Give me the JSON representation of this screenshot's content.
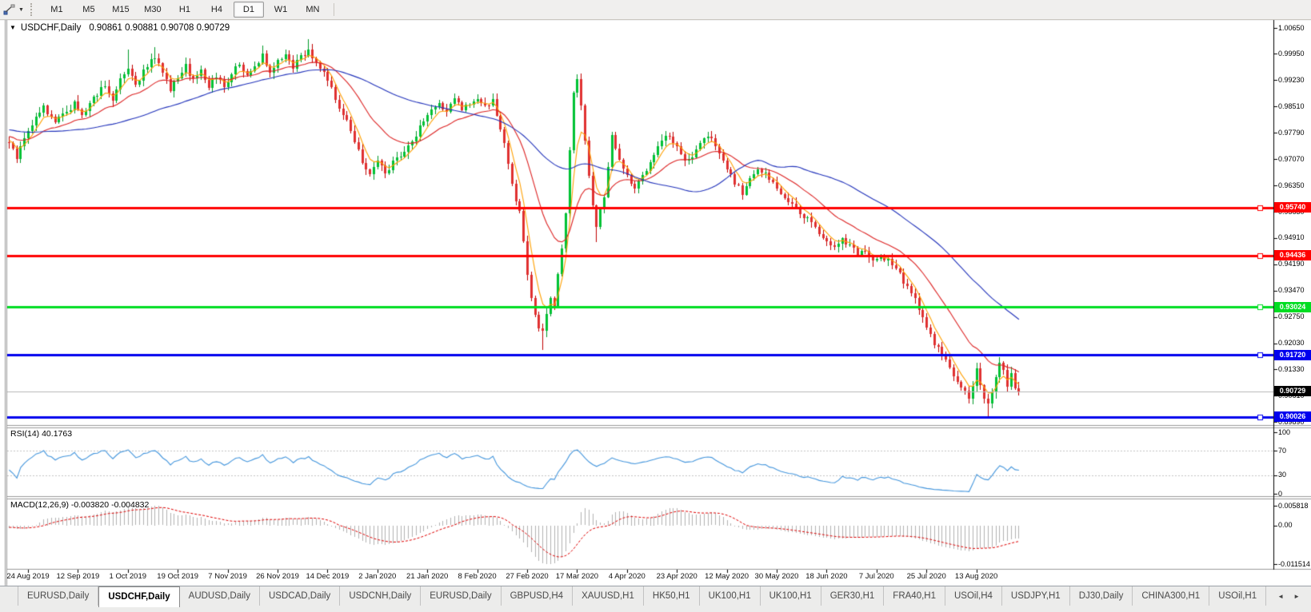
{
  "toolbar": {
    "timeframes": [
      "M1",
      "M5",
      "M15",
      "M30",
      "H1",
      "H4",
      "D1",
      "W1",
      "MN"
    ],
    "active_timeframe": "D1"
  },
  "icons": {
    "chart_dropdown": "▼",
    "toolbar_dropdown": "▼",
    "scroll_left": "◄",
    "scroll_right": "►"
  },
  "chart": {
    "symbol_label": "USDCHF,Daily",
    "ohlc": {
      "open": "0.90861",
      "high": "0.90881",
      "low": "0.90708",
      "close": "0.90729"
    },
    "ohlc_text": "0.90861 0.90881 0.90708 0.90729",
    "price_axis_ticks": [
      "1.00650",
      "0.99950",
      "0.99230",
      "0.98510",
      "0.97790",
      "0.97070",
      "0.96350",
      "0.95630",
      "0.94910",
      "0.94190",
      "0.93470",
      "0.92750",
      "0.92030",
      "0.91330",
      "0.90610",
      "0.89890"
    ],
    "horizontal_lines": [
      {
        "price": 0.9574,
        "label": "0.95740",
        "color": "#ff0000"
      },
      {
        "price": 0.94436,
        "label": "0.94436",
        "color": "#ff0000"
      },
      {
        "price": 0.93024,
        "label": "0.93024",
        "color": "#00dd22"
      },
      {
        "price": 0.9172,
        "label": "0.91720",
        "color": "#0000ee"
      },
      {
        "price": 0.90026,
        "label": "0.90026",
        "color": "#0000ee"
      }
    ],
    "current_price": {
      "value": 0.90729,
      "label": "0.90729",
      "line_color": "#b8b8b8",
      "label_bg": "#000000"
    }
  },
  "indicators": {
    "rsi": {
      "label": "RSI(14) 40.1763",
      "period": 14,
      "value": 40.1763,
      "axis_values": [
        100,
        70,
        30,
        0
      ],
      "axis_labels": [
        "100",
        "70",
        "30",
        "0"
      ],
      "dashed_levels": [
        70,
        30
      ],
      "line_color": "#4496dd"
    },
    "macd": {
      "label": "MACD(12,26,9) -0.003820 -0.004832",
      "fast": 12,
      "slow": 26,
      "signal_period": 9,
      "main_value": -0.00382,
      "signal_value": -0.004832,
      "axis_values": [
        0.005818,
        0.0,
        -0.011514
      ],
      "axis_labels": [
        "0.005818",
        "0.00",
        "-0.011514"
      ],
      "max": 0.005818,
      "min": -0.011514,
      "bar_color": "#b2b2b2",
      "signal_color": "#e00000"
    }
  },
  "date_axis": {
    "labels": [
      "24 Aug 2019",
      "12 Sep 2019",
      "1 Oct 2019",
      "19 Oct 2019",
      "7 Nov 2019",
      "26 Nov 2019",
      "14 Dec 2019",
      "2 Jan 2020",
      "21 Jan 2020",
      "8 Feb 2020",
      "27 Feb 2020",
      "17 Mar 2020",
      "4 Apr 2020",
      "23 Apr 2020",
      "12 May 2020",
      "30 May 2020",
      "18 Jun 2020",
      "7 Jul 2020",
      "25 Jul 2020",
      "13 Aug 2020"
    ]
  },
  "tabs": {
    "items": [
      "EURUSD,Daily",
      "USDCHF,Daily",
      "AUDUSD,Daily",
      "USDCAD,Daily",
      "USDCNH,Daily",
      "EURUSD,Daily",
      "GBPUSD,H4",
      "XAUUSD,H1",
      "HK50,H1",
      "UK100,H1",
      "UK100,H1",
      "GER30,H1",
      "FRA40,H1",
      "USOil,H4",
      "USDJPY,H1",
      "DJ30,Daily",
      "CHINA300,H1",
      "USOil,H1"
    ],
    "active_index": 1
  },
  "chart_data": {
    "type": "candlestick+indicators",
    "symbol": "USDCHF",
    "timeframe": "Daily",
    "bars_visible": 264,
    "price_axis_range": {
      "top_price": 1.0065,
      "bottom_price": 0.8989
    },
    "colors": {
      "bull": "#00c234",
      "bull_wick": "#009a28",
      "bear": "#e03030",
      "bear_wick": "#c00000",
      "ma_fast": "#ffa000",
      "ma_mid": "#dd2222",
      "ma_slow": "#2233bb",
      "background": "#ffffff"
    },
    "moving_averages": [
      {
        "name": "fast",
        "type": "ema",
        "period": 5,
        "color": "#ffa000"
      },
      {
        "name": "mid",
        "type": "ema",
        "period": 20,
        "color": "#dd2222"
      },
      {
        "name": "slow",
        "type": "sma",
        "period": 50,
        "color": "#2233bb"
      }
    ],
    "close_keyframes": [
      [
        0,
        0.9755
      ],
      [
        2,
        0.9712
      ],
      [
        4,
        0.976
      ],
      [
        6,
        0.98
      ],
      [
        9,
        0.9848
      ],
      [
        12,
        0.9805
      ],
      [
        15,
        0.9835
      ],
      [
        17,
        0.9862
      ],
      [
        19,
        0.983
      ],
      [
        22,
        0.987
      ],
      [
        25,
        0.991
      ],
      [
        27,
        0.987
      ],
      [
        29,
        0.992
      ],
      [
        31,
        0.9955
      ],
      [
        33,
        0.9905
      ],
      [
        35,
        0.9945
      ],
      [
        38,
        0.9985
      ],
      [
        40,
        0.994
      ],
      [
        42,
        0.99
      ],
      [
        44,
        0.9925
      ],
      [
        46,
        0.996
      ],
      [
        48,
        0.992
      ],
      [
        50,
        0.9955
      ],
      [
        52,
        0.9905
      ],
      [
        54,
        0.9935
      ],
      [
        56,
        0.9905
      ],
      [
        58,
        0.994
      ],
      [
        60,
        0.9965
      ],
      [
        62,
        0.9935
      ],
      [
        64,
        0.996
      ],
      [
        66,
        0.999
      ],
      [
        68,
        0.994
      ],
      [
        70,
        0.997
      ],
      [
        72,
        0.9995
      ],
      [
        74,
        0.996
      ],
      [
        76,
        0.999
      ],
      [
        78,
        1.0
      ],
      [
        80,
        0.9975
      ],
      [
        82,
        0.994
      ],
      [
        84,
        0.9895
      ],
      [
        86,
        0.985
      ],
      [
        88,
        0.981
      ],
      [
        90,
        0.976
      ],
      [
        92,
        0.97
      ],
      [
        94,
        0.9665
      ],
      [
        96,
        0.97
      ],
      [
        98,
        0.967
      ],
      [
        100,
        0.9695
      ],
      [
        102,
        0.972
      ],
      [
        104,
        0.9745
      ],
      [
        106,
        0.9775
      ],
      [
        108,
        0.981
      ],
      [
        110,
        0.984
      ],
      [
        112,
        0.9855
      ],
      [
        114,
        0.984
      ],
      [
        116,
        0.987
      ],
      [
        118,
        0.984
      ],
      [
        120,
        0.986
      ],
      [
        122,
        0.9875
      ],
      [
        124,
        0.9855
      ],
      [
        126,
        0.9865
      ],
      [
        128,
        0.979
      ],
      [
        130,
        0.97
      ],
      [
        131,
        0.964
      ],
      [
        132,
        0.959
      ],
      [
        133,
        0.956
      ],
      [
        134,
        0.948
      ],
      [
        135,
        0.939
      ],
      [
        136,
        0.933
      ],
      [
        137,
        0.928
      ],
      [
        138,
        0.925
      ],
      [
        139,
        0.9235
      ],
      [
        140,
        0.928
      ],
      [
        141,
        0.932
      ],
      [
        142,
        0.93
      ],
      [
        143,
        0.939
      ],
      [
        144,
        0.947
      ],
      [
        145,
        0.956
      ],
      [
        146,
        0.974
      ],
      [
        147,
        0.989
      ],
      [
        148,
        0.992
      ],
      [
        149,
        0.986
      ],
      [
        151,
        0.966
      ],
      [
        153,
        0.9515
      ],
      [
        155,
        0.961
      ],
      [
        157,
        0.9775
      ],
      [
        159,
        0.97
      ],
      [
        161,
        0.966
      ],
      [
        163,
        0.9625
      ],
      [
        165,
        0.9655
      ],
      [
        167,
        0.97
      ],
      [
        169,
        0.974
      ],
      [
        171,
        0.9775
      ],
      [
        173,
        0.975
      ],
      [
        175,
        0.972
      ],
      [
        177,
        0.97
      ],
      [
        179,
        0.973
      ],
      [
        181,
        0.9755
      ],
      [
        183,
        0.977
      ],
      [
        185,
        0.972
      ],
      [
        187,
        0.968
      ],
      [
        189,
        0.964
      ],
      [
        191,
        0.9615
      ],
      [
        193,
        0.965
      ],
      [
        195,
        0.9685
      ],
      [
        197,
        0.9665
      ],
      [
        199,
        0.964
      ],
      [
        201,
        0.9615
      ],
      [
        203,
        0.959
      ],
      [
        205,
        0.957
      ],
      [
        207,
        0.955
      ],
      [
        209,
        0.953
      ],
      [
        211,
        0.9505
      ],
      [
        213,
        0.948
      ],
      [
        215,
        0.9465
      ],
      [
        217,
        0.949
      ],
      [
        219,
        0.947
      ],
      [
        221,
        0.945
      ],
      [
        223,
        0.9455
      ],
      [
        225,
        0.9425
      ],
      [
        227,
        0.9445
      ],
      [
        229,
        0.943
      ],
      [
        231,
        0.9405
      ],
      [
        233,
        0.9375
      ],
      [
        235,
        0.934
      ],
      [
        237,
        0.93
      ],
      [
        239,
        0.9245
      ],
      [
        241,
        0.92
      ],
      [
        243,
        0.918
      ],
      [
        245,
        0.914
      ],
      [
        247,
        0.91
      ],
      [
        249,
        0.907
      ],
      [
        250,
        0.9045
      ],
      [
        252,
        0.913
      ],
      [
        254,
        0.906
      ],
      [
        255,
        0.904
      ],
      [
        256,
        0.9075
      ],
      [
        257,
        0.911
      ],
      [
        258,
        0.915
      ],
      [
        259,
        0.913
      ],
      [
        260,
        0.9085
      ],
      [
        261,
        0.912
      ],
      [
        262,
        0.9085
      ],
      [
        263,
        0.90729
      ]
    ],
    "wick_overrides": [
      {
        "bar": 2,
        "low": 0.9705
      },
      {
        "bar": 31,
        "high": 1.0005
      },
      {
        "bar": 38,
        "high": 1.0012
      },
      {
        "bar": 66,
        "high": 1.0018
      },
      {
        "bar": 78,
        "high": 1.0035
      },
      {
        "bar": 139,
        "low": 0.9185
      },
      {
        "bar": 148,
        "high": 0.9928
      },
      {
        "bar": 153,
        "low": 0.948
      },
      {
        "bar": 250,
        "low": 0.904
      },
      {
        "bar": 255,
        "low": 0.9003
      }
    ],
    "synthesis": {
      "seed": 1234,
      "warmup_bars": 60,
      "warmup_from": 0.9825,
      "warmup_to": 0.976,
      "close_noise": 0.0016,
      "wick_noise": 0.0014
    }
  }
}
